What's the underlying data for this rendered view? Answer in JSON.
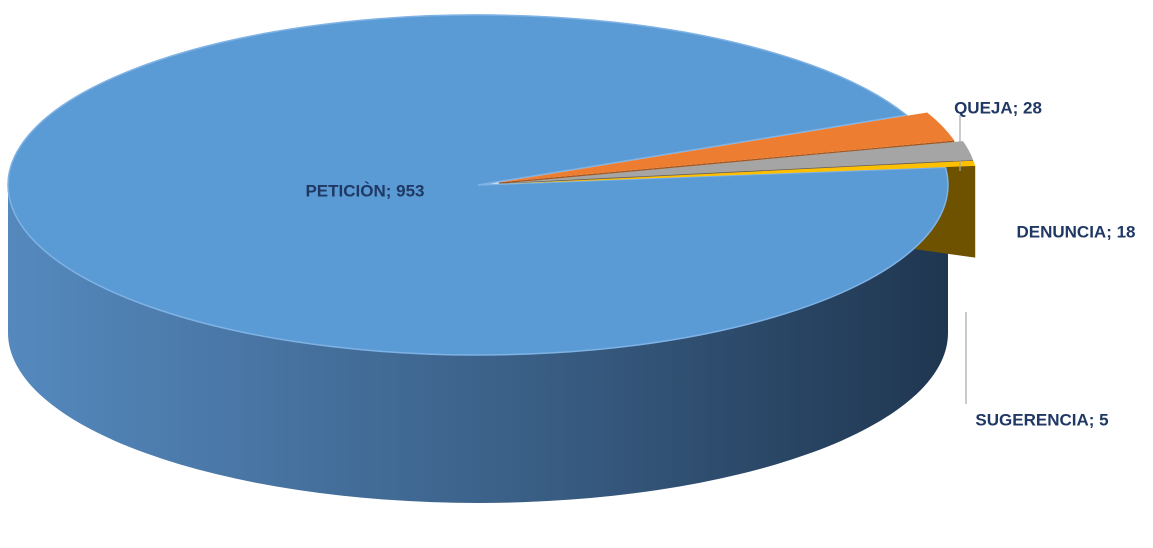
{
  "chart_data": {
    "type": "pie",
    "style": "3d-exploded",
    "title": "",
    "slices": [
      {
        "label": "PETICIÒN",
        "value": 953,
        "color": "#5B9BD5",
        "side_color": "#3E6E9C"
      },
      {
        "label": "QUEJA",
        "value": 28,
        "color": "#ED7D31",
        "side_color": "#A4561F"
      },
      {
        "label": "DENUNCIA",
        "value": 18,
        "color": "#A5A5A5",
        "side_color": "#5E5E5E"
      },
      {
        "label": "SUGERENCIA",
        "value": 5,
        "color": "#FFC000",
        "side_color": "#6E5200"
      }
    ],
    "label_separator": "; ",
    "label_color": "#1F3864",
    "leader_line_color": "#A6A6A6",
    "legend": "none"
  }
}
